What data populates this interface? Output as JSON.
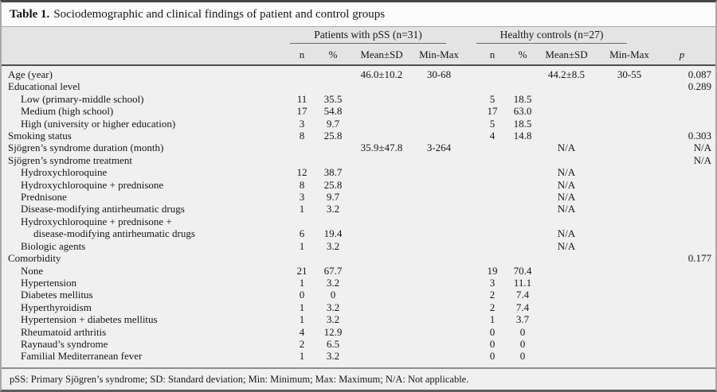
{
  "title": {
    "label": "Table 1.",
    "text": "Sociodemographic and clinical findings of patient and control groups"
  },
  "header": {
    "groups": [
      {
        "label": "Patients with pSS (n=31)"
      },
      {
        "label": "Healthy controls (n=27)"
      }
    ],
    "subcolumns": [
      "n",
      "%",
      "Mean±SD",
      "Min-Max",
      "n",
      "%",
      "Mean±SD",
      "Min-Max"
    ],
    "p_label": "p"
  },
  "rows": [
    {
      "label": "Age (year)",
      "indent": 0,
      "cells": [
        "",
        "",
        "46.0±10.2",
        "30-68",
        "",
        "",
        "44.2±8.5",
        "30-55",
        "0.087"
      ]
    },
    {
      "label": "Educational level",
      "indent": 0,
      "cells": [
        "",
        "",
        "",
        "",
        "",
        "",
        "",
        "",
        "0.289"
      ]
    },
    {
      "label": "Low (primary-middle school)",
      "indent": 1,
      "cells": [
        "11",
        "35.5",
        "",
        "",
        "5",
        "18.5",
        "",
        "",
        ""
      ]
    },
    {
      "label": "Medium (high school)",
      "indent": 1,
      "cells": [
        "17",
        "54.8",
        "",
        "",
        "17",
        "63.0",
        "",
        "",
        ""
      ]
    },
    {
      "label": "High (university or higher education)",
      "indent": 1,
      "cells": [
        "3",
        "9.7",
        "",
        "",
        "5",
        "18.5",
        "",
        "",
        ""
      ]
    },
    {
      "label": "Smoking status",
      "indent": 0,
      "cells": [
        "8",
        "25.8",
        "",
        "",
        "4",
        "14.8",
        "",
        "",
        "0.303"
      ]
    },
    {
      "label": "Sjögren’s syndrome duration (month)",
      "indent": 0,
      "cells": [
        "",
        "",
        "35.9±47.8",
        "3-264",
        "",
        "",
        "N/A",
        "",
        "N/A"
      ]
    },
    {
      "label": "Sjögren’s syndrome treatment",
      "indent": 0,
      "cells": [
        "",
        "",
        "",
        "",
        "",
        "",
        "",
        "",
        "N/A"
      ]
    },
    {
      "label": "Hydroxychloroquine",
      "indent": 1,
      "cells": [
        "12",
        "38.7",
        "",
        "",
        "",
        "",
        "N/A",
        "",
        ""
      ]
    },
    {
      "label": "Hydroxychloroquine + prednisone",
      "indent": 1,
      "cells": [
        "8",
        "25.8",
        "",
        "",
        "",
        "",
        "N/A",
        "",
        ""
      ]
    },
    {
      "label": "Prednisone",
      "indent": 1,
      "cells": [
        "3",
        "9.7",
        "",
        "",
        "",
        "",
        "N/A",
        "",
        ""
      ]
    },
    {
      "label": "Disease-modifying antirheumatic drugs",
      "indent": 1,
      "cells": [
        "1",
        "3.2",
        "",
        "",
        "",
        "",
        "N/A",
        "",
        ""
      ]
    },
    {
      "label": "Hydroxychloroquine + prednisone +",
      "indent": 1,
      "cells": [
        "",
        "",
        "",
        "",
        "",
        "",
        "",
        "",
        ""
      ]
    },
    {
      "label": "disease-modifying antirheumatic drugs",
      "indent": 2,
      "cells": [
        "6",
        "19.4",
        "",
        "",
        "",
        "",
        "N/A",
        "",
        ""
      ]
    },
    {
      "label": "Biologic agents",
      "indent": 1,
      "cells": [
        "1",
        "3.2",
        "",
        "",
        "",
        "",
        "N/A",
        "",
        ""
      ]
    },
    {
      "label": "Comorbidity",
      "indent": 0,
      "cells": [
        "",
        "",
        "",
        "",
        "",
        "",
        "",
        "",
        "0.177"
      ]
    },
    {
      "label": "None",
      "indent": 1,
      "cells": [
        "21",
        "67.7",
        "",
        "",
        "19",
        "70.4",
        "",
        "",
        ""
      ]
    },
    {
      "label": "Hypertension",
      "indent": 1,
      "cells": [
        "1",
        "3.2",
        "",
        "",
        "3",
        "11.1",
        "",
        "",
        ""
      ]
    },
    {
      "label": "Diabetes mellitus",
      "indent": 1,
      "cells": [
        "0",
        "0",
        "",
        "",
        "2",
        "7.4",
        "",
        "",
        ""
      ]
    },
    {
      "label": "Hyperthyroidism",
      "indent": 1,
      "cells": [
        "1",
        "3.2",
        "",
        "",
        "2",
        "7.4",
        "",
        "",
        ""
      ]
    },
    {
      "label": "Hypertension + diabetes mellitus",
      "indent": 1,
      "cells": [
        "1",
        "3.2",
        "",
        "",
        "1",
        "3.7",
        "",
        "",
        ""
      ]
    },
    {
      "label": "Rheumatoid arthritis",
      "indent": 1,
      "cells": [
        "4",
        "12.9",
        "",
        "",
        "0",
        "0",
        "",
        "",
        ""
      ]
    },
    {
      "label": "Raynaud’s syndrome",
      "indent": 1,
      "cells": [
        "2",
        "6.5",
        "",
        "",
        "0",
        "0",
        "",
        "",
        ""
      ]
    },
    {
      "label": "Familial Mediterranean fever",
      "indent": 1,
      "cells": [
        "1",
        "3.2",
        "",
        "",
        "0",
        "0",
        "",
        "",
        ""
      ]
    }
  ],
  "footnote": "pSS: Primary Sjögren’s syndrome; SD: Standard deviation; Min: Minimum; Max: Maximum; N/A: Not applicable."
}
